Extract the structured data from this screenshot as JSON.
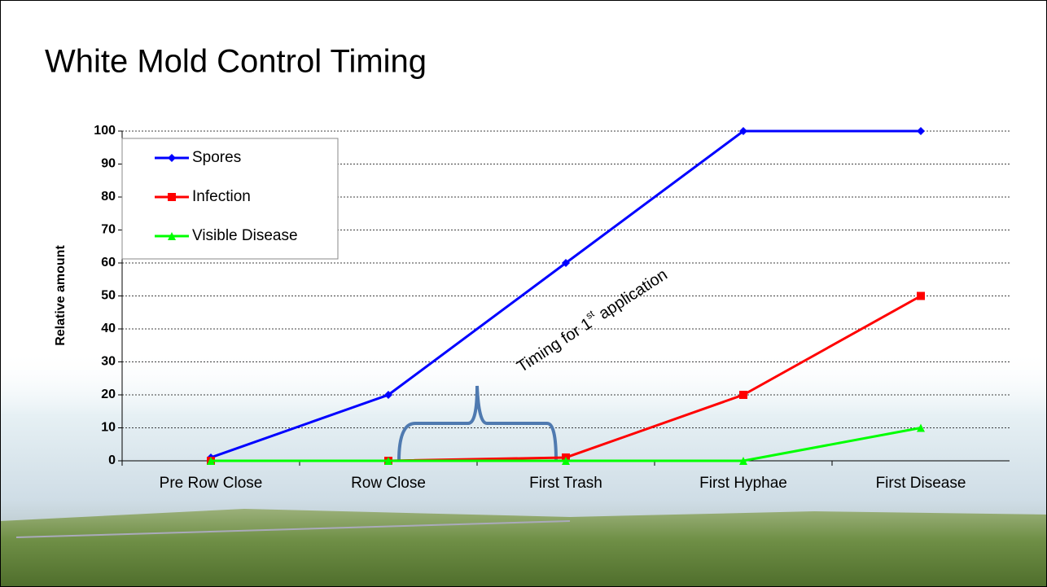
{
  "chart_data": {
    "type": "line",
    "title": "White Mold Control Timing",
    "y_label": "Relative amount",
    "categories": [
      "Pre Row Close",
      "Row Close",
      "First Trash",
      "First Hyphae",
      "First Disease"
    ],
    "series": [
      {
        "name": "Spores",
        "color": "#0000ff",
        "marker": "diamond",
        "values": [
          1,
          20,
          60,
          100,
          100
        ]
      },
      {
        "name": "Infection",
        "color": "#ff0000",
        "marker": "square",
        "values": [
          0,
          0,
          1,
          20,
          50
        ]
      },
      {
        "name": "Visible Disease",
        "color": "#00ff00",
        "marker": "triangle",
        "values": [
          0,
          0,
          0,
          0,
          10
        ]
      }
    ],
    "ylim": [
      0,
      100
    ],
    "yticks": [
      0,
      10,
      20,
      30,
      40,
      50,
      60,
      70,
      80,
      90,
      100
    ],
    "grid": true,
    "annotation": {
      "text": "Timing for 1",
      "sup": "st",
      "tail": " application"
    }
  }
}
